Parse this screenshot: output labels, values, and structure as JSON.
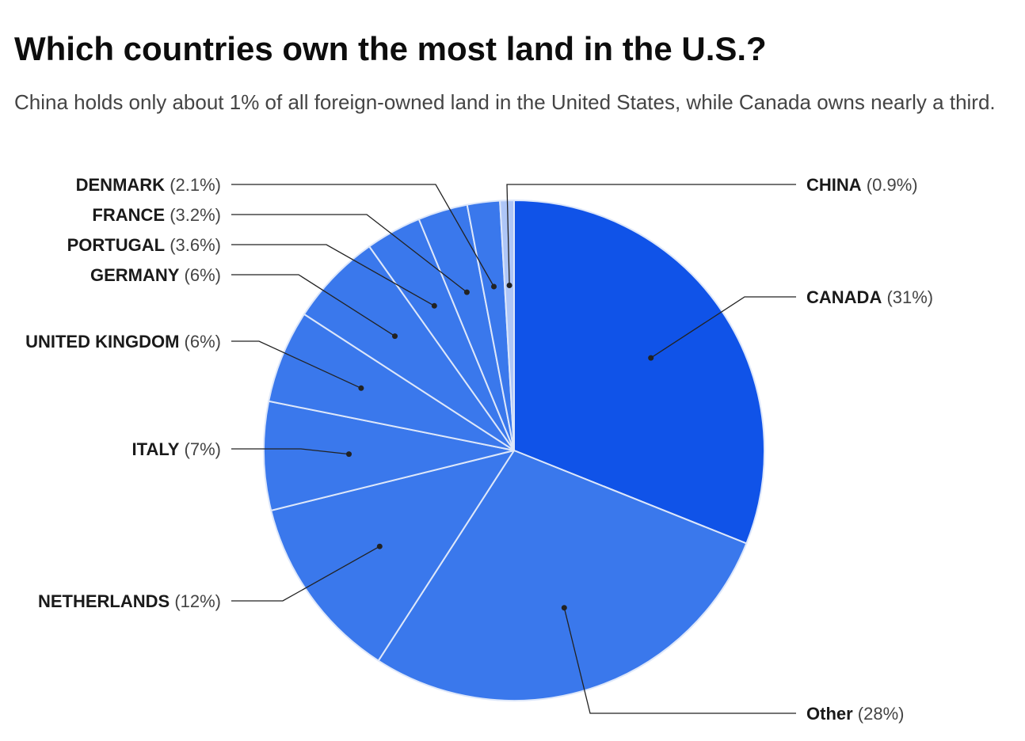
{
  "header": {
    "title": "Which countries own the most land in the U.S.?",
    "subtitle": "China holds only about 1% of all foreign-owned land in the United States, while Canada owns nearly a third."
  },
  "colors": {
    "slice_primary": "#1053e8",
    "slice_secondary": "#3a78ec",
    "slice_china": "#aec6f7",
    "separator": "#dde7fa",
    "leader": "#222222"
  },
  "chart_data": {
    "type": "pie",
    "title": "Which countries own the most land in the U.S.?",
    "subtitle": "China holds only about 1% of all foreign-owned land in the United States, while Canada owns nearly a third.",
    "start_angle_deg": 0,
    "direction": "clockwise",
    "slices": [
      {
        "name": "CANADA",
        "pct_label": "(31%)",
        "value": 31
      },
      {
        "name": "Other",
        "pct_label": "(28%)",
        "value": 28
      },
      {
        "name": "NETHERLANDS",
        "pct_label": "(12%)",
        "value": 12
      },
      {
        "name": "ITALY",
        "pct_label": "(7%)",
        "value": 7
      },
      {
        "name": "UNITED KINGDOM",
        "pct_label": "(6%)",
        "value": 6
      },
      {
        "name": "GERMANY",
        "pct_label": "(6%)",
        "value": 6
      },
      {
        "name": "PORTUGAL",
        "pct_label": "(3.6%)",
        "value": 3.6
      },
      {
        "name": "FRANCE",
        "pct_label": "(3.2%)",
        "value": 3.2
      },
      {
        "name": "DENMARK",
        "pct_label": "(2.1%)",
        "value": 2.1
      },
      {
        "name": "CHINA",
        "pct_label": "(0.9%)",
        "value": 0.9
      }
    ]
  }
}
